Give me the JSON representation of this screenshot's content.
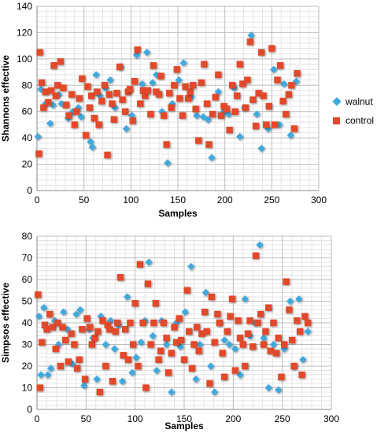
{
  "chart_data": [
    {
      "type": "scatter",
      "xlabel": "Samples",
      "ylabel": "Shannons effective",
      "xlim": [
        0,
        300
      ],
      "ylim": [
        0,
        140
      ],
      "xticks": [
        0,
        50,
        100,
        150,
        200,
        250,
        300
      ],
      "yticks": [
        0,
        20,
        40,
        60,
        80,
        100,
        120,
        140
      ],
      "x_tick_labels": [
        "0",
        "50",
        "100",
        "150",
        "200",
        "250",
        "300"
      ],
      "y_tick_labels": [
        "0",
        "20",
        "40",
        "60",
        "80",
        "100",
        "120",
        "140"
      ],
      "grid": true,
      "legend_position": "right",
      "series": [
        {
          "name": "walnut",
          "color": "#3fa9de",
          "marker": "diamond",
          "x": [
            1,
            4,
            9,
            14,
            17,
            23,
            26,
            33,
            38,
            44,
            47,
            57,
            59,
            63,
            67,
            73,
            78,
            83,
            89,
            95,
            101,
            106,
            112,
            117,
            123,
            127,
            133,
            139,
            144,
            151,
            156,
            164,
            170,
            177,
            182,
            186,
            193,
            199,
            204,
            210,
            216,
            221,
            228,
            234,
            239,
            246,
            252,
            258,
            263,
            270,
            276
          ],
          "y": [
            41,
            77,
            66,
            51,
            65,
            73,
            66,
            55,
            60,
            63,
            56,
            37,
            33,
            88,
            72,
            78,
            84,
            63,
            94,
            47,
            57,
            103,
            81,
            105,
            82,
            88,
            60,
            21,
            66,
            84,
            97,
            71,
            57,
            56,
            54,
            25,
            75,
            60,
            58,
            78,
            41,
            63,
            118,
            58,
            32,
            47,
            92,
            50,
            81,
            42,
            83
          ]
        },
        {
          "name": "control",
          "color": "#e24a2a",
          "marker": "square",
          "x": [
            2,
            3,
            5,
            7,
            9,
            12,
            15,
            18,
            20,
            22,
            25,
            28,
            31,
            34,
            37,
            40,
            42,
            45,
            48,
            52,
            54,
            56,
            58,
            61,
            64,
            66,
            69,
            72,
            75,
            77,
            80,
            82,
            85,
            88,
            91,
            94,
            97,
            99,
            102,
            104,
            107,
            110,
            113,
            115,
            118,
            121,
            124,
            127,
            130,
            132,
            135,
            138,
            141,
            143,
            146,
            149,
            152,
            155,
            158,
            161,
            163,
            166,
            169,
            172,
            175,
            178,
            181,
            183,
            187,
            190,
            193,
            196,
            199,
            202,
            205,
            208,
            211,
            213,
            216,
            219,
            222,
            224,
            227,
            230,
            233,
            236,
            239,
            241,
            244,
            247,
            250,
            253,
            256,
            259,
            262,
            265,
            268,
            271,
            274,
            277
          ],
          "y": [
            28,
            105,
            82,
            63,
            75,
            67,
            76,
            95,
            72,
            80,
            98,
            78,
            65,
            57,
            73,
            50,
            60,
            70,
            85,
            42,
            79,
            63,
            72,
            55,
            75,
            50,
            68,
            80,
            27,
            73,
            66,
            54,
            74,
            94,
            69,
            60,
            75,
            77,
            53,
            83,
            107,
            66,
            76,
            72,
            76,
            58,
            95,
            75,
            73,
            87,
            57,
            35,
            74,
            63,
            80,
            92,
            70,
            57,
            79,
            70,
            75,
            80,
            62,
            38,
            82,
            96,
            66,
            35,
            58,
            71,
            88,
            57,
            64,
            62,
            46,
            80,
            60,
            72,
            96,
            81,
            63,
            84,
            113,
            69,
            49,
            74,
            105,
            72,
            50,
            64,
            108,
            50,
            84,
            95,
            68,
            58,
            73,
            80,
            47,
            89
          ]
        }
      ]
    },
    {
      "type": "scatter",
      "xlabel": "Samples",
      "ylabel": "Simpsos effective",
      "xlim": [
        0,
        300
      ],
      "ylim": [
        0,
        80
      ],
      "xticks": [
        0,
        50,
        100,
        150,
        200,
        250,
        300
      ],
      "yticks": [
        0,
        10,
        20,
        30,
        40,
        50,
        60,
        70,
        80
      ],
      "x_tick_labels": [
        "0",
        "50",
        "100",
        "150",
        "200",
        "250",
        "300"
      ],
      "y_tick_labels": [
        "0",
        "10",
        "20",
        "30",
        "40",
        "50",
        "60",
        "70",
        "80"
      ],
      "grid": true,
      "legend_position": "none",
      "series": [
        {
          "name": "walnut",
          "color": "#3fa9de",
          "marker": "diamond",
          "x": [
            2,
            4,
            7,
            11,
            14,
            18,
            22,
            27,
            31,
            36,
            40,
            44,
            48,
            53,
            57,
            61,
            65,
            70,
            75,
            79,
            83,
            87,
            92,
            97,
            101,
            106,
            110,
            114,
            118,
            122,
            127,
            132,
            137,
            142,
            146,
            151,
            157,
            162,
            166,
            172,
            177,
            181,
            186,
            191,
            196,
            202,
            207,
            212,
            217,
            222,
            227,
            231,
            236,
            241,
            246,
            252,
            258,
            262,
            267,
            271,
            276
          ],
          "y": [
            43,
            16,
            47,
            16,
            19,
            41,
            30,
            45,
            37,
            21,
            44,
            46,
            11,
            37,
            33,
            14,
            43,
            30,
            41,
            28,
            39,
            13,
            52,
            17,
            24,
            31,
            41,
            68,
            34,
            18,
            41,
            30,
            8,
            40,
            29,
            45,
            66,
            14,
            30,
            54,
            20,
            8,
            40,
            32,
            30,
            28,
            16,
            51,
            34,
            40,
            76,
            33,
            10,
            30,
            9,
            28,
            50,
            20,
            51,
            23,
            36
          ]
        },
        {
          "name": "control",
          "color": "#e24a2a",
          "marker": "square",
          "x": [
            1,
            3,
            5,
            8,
            10,
            13,
            16,
            19,
            21,
            24,
            26,
            29,
            32,
            35,
            38,
            41,
            43,
            46,
            49,
            51,
            54,
            56,
            59,
            62,
            64,
            67,
            70,
            72,
            74,
            77,
            80,
            82,
            85,
            88,
            90,
            93,
            95,
            98,
            100,
            103,
            105,
            108,
            111,
            113,
            116,
            119,
            121,
            124,
            126,
            129,
            132,
            134,
            137,
            140,
            142,
            145,
            147,
            150,
            153,
            155,
            158,
            160,
            163,
            165,
            168,
            171,
            173,
            176,
            178,
            181,
            184,
            186,
            189,
            191,
            194,
            197,
            199,
            202,
            205,
            207,
            210,
            212,
            215,
            217,
            220,
            223,
            225,
            228,
            231,
            233,
            236,
            238,
            241,
            244,
            246,
            249,
            252,
            254,
            257,
            260,
            262,
            265,
            268,
            270,
            273,
            276
          ],
          "y": [
            53,
            10,
            31,
            39,
            37,
            44,
            38,
            28,
            40,
            20,
            38,
            32,
            22,
            35,
            30,
            19,
            23,
            37,
            14,
            42,
            38,
            30,
            33,
            36,
            8,
            41,
            20,
            39,
            37,
            13,
            36,
            40,
            61,
            25,
            37,
            23,
            40,
            30,
            49,
            20,
            67,
            40,
            10,
            58,
            30,
            40,
            49,
            23,
            27,
            40,
            33,
            17,
            26,
            38,
            31,
            42,
            32,
            23,
            55,
            36,
            19,
            30,
            38,
            27,
            35,
            45,
            36,
            12,
            52,
            31,
            44,
            40,
            26,
            15,
            36,
            43,
            51,
            18,
            41,
            33,
            30,
            20,
            35,
            41,
            29,
            71,
            40,
            44,
            30,
            36,
            47,
            27,
            40,
            26,
            33,
            15,
            30,
            59,
            46,
            32,
            20,
            41,
            36,
            16,
            43,
            40
          ]
        }
      ]
    }
  ]
}
